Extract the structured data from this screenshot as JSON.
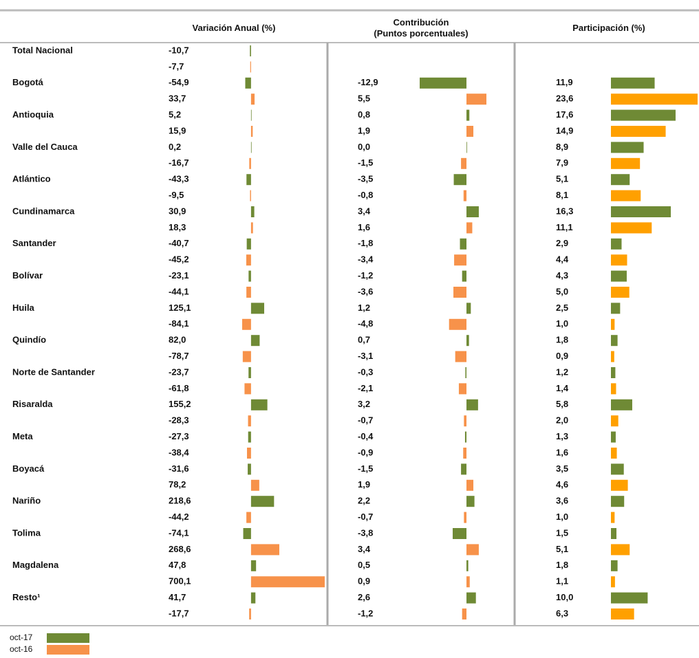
{
  "chart_data": {
    "type": "table-bar",
    "categories": [
      "Total Nacional",
      "Bogotá",
      "Antioquia",
      "Valle del Cauca",
      "Atlántico",
      "Cundinamarca",
      "Santander",
      "Bolívar",
      "Huila",
      "Quindío",
      "Norte de Santander",
      "Risaralda",
      "Meta",
      "Boyacá",
      "Nariño",
      "Tolima",
      "Magdalena",
      "Resto¹"
    ],
    "legend": [
      {
        "name": "oct-17",
        "color": "#6f8a35"
      },
      {
        "name": "oct-16",
        "color": "#f7924a"
      }
    ],
    "panels": [
      {
        "title": "Variación Anual (%)",
        "series": [
          {
            "color": "#6f8a35",
            "values": [
              -10.7,
              -54.9,
              5.2,
              0.2,
              -43.3,
              30.9,
              -40.7,
              -23.1,
              125.1,
              82.0,
              -23.7,
              155.2,
              -27.3,
              -31.6,
              218.6,
              -74.1,
              47.8,
              41.7
            ],
            "value_labels": [
              "-10,7",
              "-54,9",
              "5,2",
              "0,2",
              "-43,3",
              "30,9",
              "-40,7",
              "-23,1",
              "125,1",
              "82,0",
              "-23,7",
              "155,2",
              "-27,3",
              "-31,6",
              "218,6",
              "-74,1",
              "47,8",
              "41,7"
            ]
          },
          {
            "color": "#f7924a",
            "values": [
              -7.7,
              33.7,
              15.9,
              -16.7,
              -9.5,
              18.3,
              -45.2,
              -44.1,
              -84.1,
              -78.7,
              -61.8,
              -28.3,
              -38.4,
              78.2,
              -44.2,
              268.6,
              700.1,
              -17.7
            ],
            "value_labels": [
              "-7,7",
              "33,7",
              "15,9",
              "-16,7",
              "-9,5",
              "18,3",
              "-45,2",
              "-44,1",
              "-84,1",
              "-78,7",
              "-61,8",
              "-28,3",
              "-38,4",
              "78,2",
              "-44,2",
              "268,6",
              "700,1",
              "-17,7"
            ]
          }
        ]
      },
      {
        "title": "Contribución\n(Puntos porcentuales)",
        "series": [
          {
            "color": "#6f8a35",
            "values": [
              null,
              -12.9,
              0.8,
              0.0,
              -3.5,
              3.4,
              -1.8,
              -1.2,
              1.2,
              0.7,
              -0.3,
              3.2,
              -0.4,
              -1.5,
              2.2,
              -3.8,
              0.5,
              2.6
            ],
            "value_labels": [
              null,
              "-12,9",
              "0,8",
              "0,0",
              "-3,5",
              "3,4",
              "-1,8",
              "-1,2",
              "1,2",
              "0,7",
              "-0,3",
              "3,2",
              "-0,4",
              "-1,5",
              "2,2",
              "-3,8",
              "0,5",
              "2,6"
            ]
          },
          {
            "color": "#f7924a",
            "values": [
              null,
              5.5,
              1.9,
              -1.5,
              -0.8,
              1.6,
              -3.4,
              -3.6,
              -4.8,
              -3.1,
              -2.1,
              -0.7,
              -0.9,
              1.9,
              -0.7,
              3.4,
              0.9,
              -1.2
            ],
            "value_labels": [
              null,
              "5,5",
              "1,9",
              "-1,5",
              "-0,8",
              "1,6",
              "-3,4",
              "-3,6",
              "-4,8",
              "-3,1",
              "-2,1",
              "-0,7",
              "-0,9",
              "1,9",
              "-0,7",
              "3,4",
              "0,9",
              "-1,2"
            ]
          }
        ]
      },
      {
        "title": "Participación (%)",
        "series": [
          {
            "color": "#6f8a35",
            "values": [
              null,
              11.9,
              17.6,
              8.9,
              5.1,
              16.3,
              2.9,
              4.3,
              2.5,
              1.8,
              1.2,
              5.8,
              1.3,
              3.5,
              3.6,
              1.5,
              1.8,
              10.0
            ],
            "value_labels": [
              null,
              "11,9",
              "17,6",
              "8,9",
              "5,1",
              "16,3",
              "2,9",
              "4,3",
              "2,5",
              "1,8",
              "1,2",
              "5,8",
              "1,3",
              "3,5",
              "3,6",
              "1,5",
              "1,8",
              "10,0"
            ]
          },
          {
            "color": "#ffa000",
            "values": [
              null,
              23.6,
              14.9,
              7.9,
              8.1,
              11.1,
              4.4,
              5.0,
              1.0,
              0.9,
              1.4,
              2.0,
              1.6,
              4.6,
              1.0,
              5.1,
              1.1,
              6.3
            ],
            "value_labels": [
              null,
              "23,6",
              "14,9",
              "7,9",
              "8,1",
              "11,1",
              "4,4",
              "5,0",
              "1,0",
              "0,9",
              "1,4",
              "2,0",
              "1,6",
              "4,6",
              "1,0",
              "5,1",
              "1,1",
              "6,3"
            ]
          }
        ]
      }
    ]
  }
}
